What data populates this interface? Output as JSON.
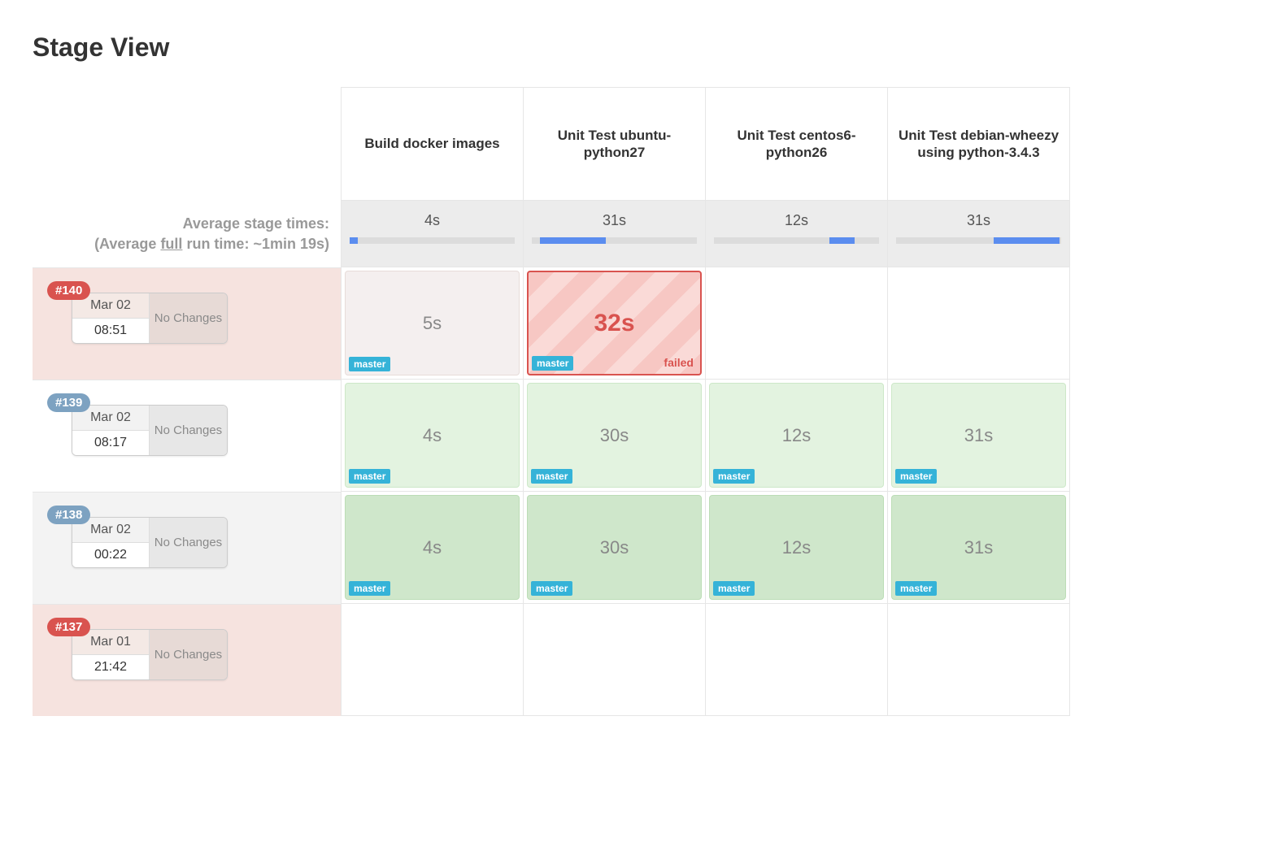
{
  "page": {
    "title": "Stage View"
  },
  "stages": [
    {
      "name": "Build docker images",
      "avg": "4s",
      "bar_start_pct": 0,
      "bar_width_pct": 5
    },
    {
      "name": "Unit Test ubuntu-python27",
      "avg": "31s",
      "bar_start_pct": 5,
      "bar_width_pct": 40
    },
    {
      "name": "Unit Test centos6-python26",
      "avg": "12s",
      "bar_start_pct": 70,
      "bar_width_pct": 15
    },
    {
      "name": "Unit Test debian-wheezy using python-3.4.3",
      "avg": "31s",
      "bar_start_pct": 59,
      "bar_width_pct": 40
    }
  ],
  "avg_label": {
    "line1": "Average stage times:",
    "line2_pre": "(Average ",
    "line2_full": "full",
    "line2_post": " run time: ~1min 19s)"
  },
  "runs": [
    {
      "id": "#140",
      "badge_color": "red",
      "date": "Mar 02",
      "time": "08:51",
      "changes": "No Changes",
      "row_style": "fail",
      "cells": [
        {
          "time": "5s",
          "style": "pale",
          "branch": "master"
        },
        {
          "time": "32s",
          "style": "failed",
          "branch": "master",
          "failed_label": "failed"
        },
        {
          "time": "",
          "style": "empty"
        },
        {
          "time": "",
          "style": "empty"
        }
      ]
    },
    {
      "id": "#139",
      "badge_color": "blue",
      "date": "Mar 02",
      "time": "08:17",
      "changes": "No Changes",
      "row_style": "",
      "cells": [
        {
          "time": "4s",
          "style": "",
          "branch": "master"
        },
        {
          "time": "30s",
          "style": "",
          "branch": "master"
        },
        {
          "time": "12s",
          "style": "",
          "branch": "master"
        },
        {
          "time": "31s",
          "style": "",
          "branch": "master"
        }
      ]
    },
    {
      "id": "#138",
      "badge_color": "blue",
      "date": "Mar 02",
      "time": "00:22",
      "changes": "No Changes",
      "row_style": "alt",
      "cells": [
        {
          "time": "4s",
          "style": "darker",
          "branch": "master"
        },
        {
          "time": "30s",
          "style": "darker",
          "branch": "master"
        },
        {
          "time": "12s",
          "style": "darker",
          "branch": "master"
        },
        {
          "time": "31s",
          "style": "darker",
          "branch": "master"
        }
      ]
    },
    {
      "id": "#137",
      "badge_color": "red",
      "date": "Mar 01",
      "time": "21:42",
      "changes": "No Changes",
      "row_style": "fail",
      "cells": [
        {
          "time": "",
          "style": "empty"
        },
        {
          "time": "",
          "style": "empty"
        },
        {
          "time": "",
          "style": "empty"
        },
        {
          "time": "",
          "style": "empty"
        }
      ]
    }
  ],
  "colors": {
    "badge_red": "#d9534f",
    "badge_blue": "#7da2c1",
    "master_tag": "#35b3d8",
    "bar_fill": "#5b8def"
  }
}
